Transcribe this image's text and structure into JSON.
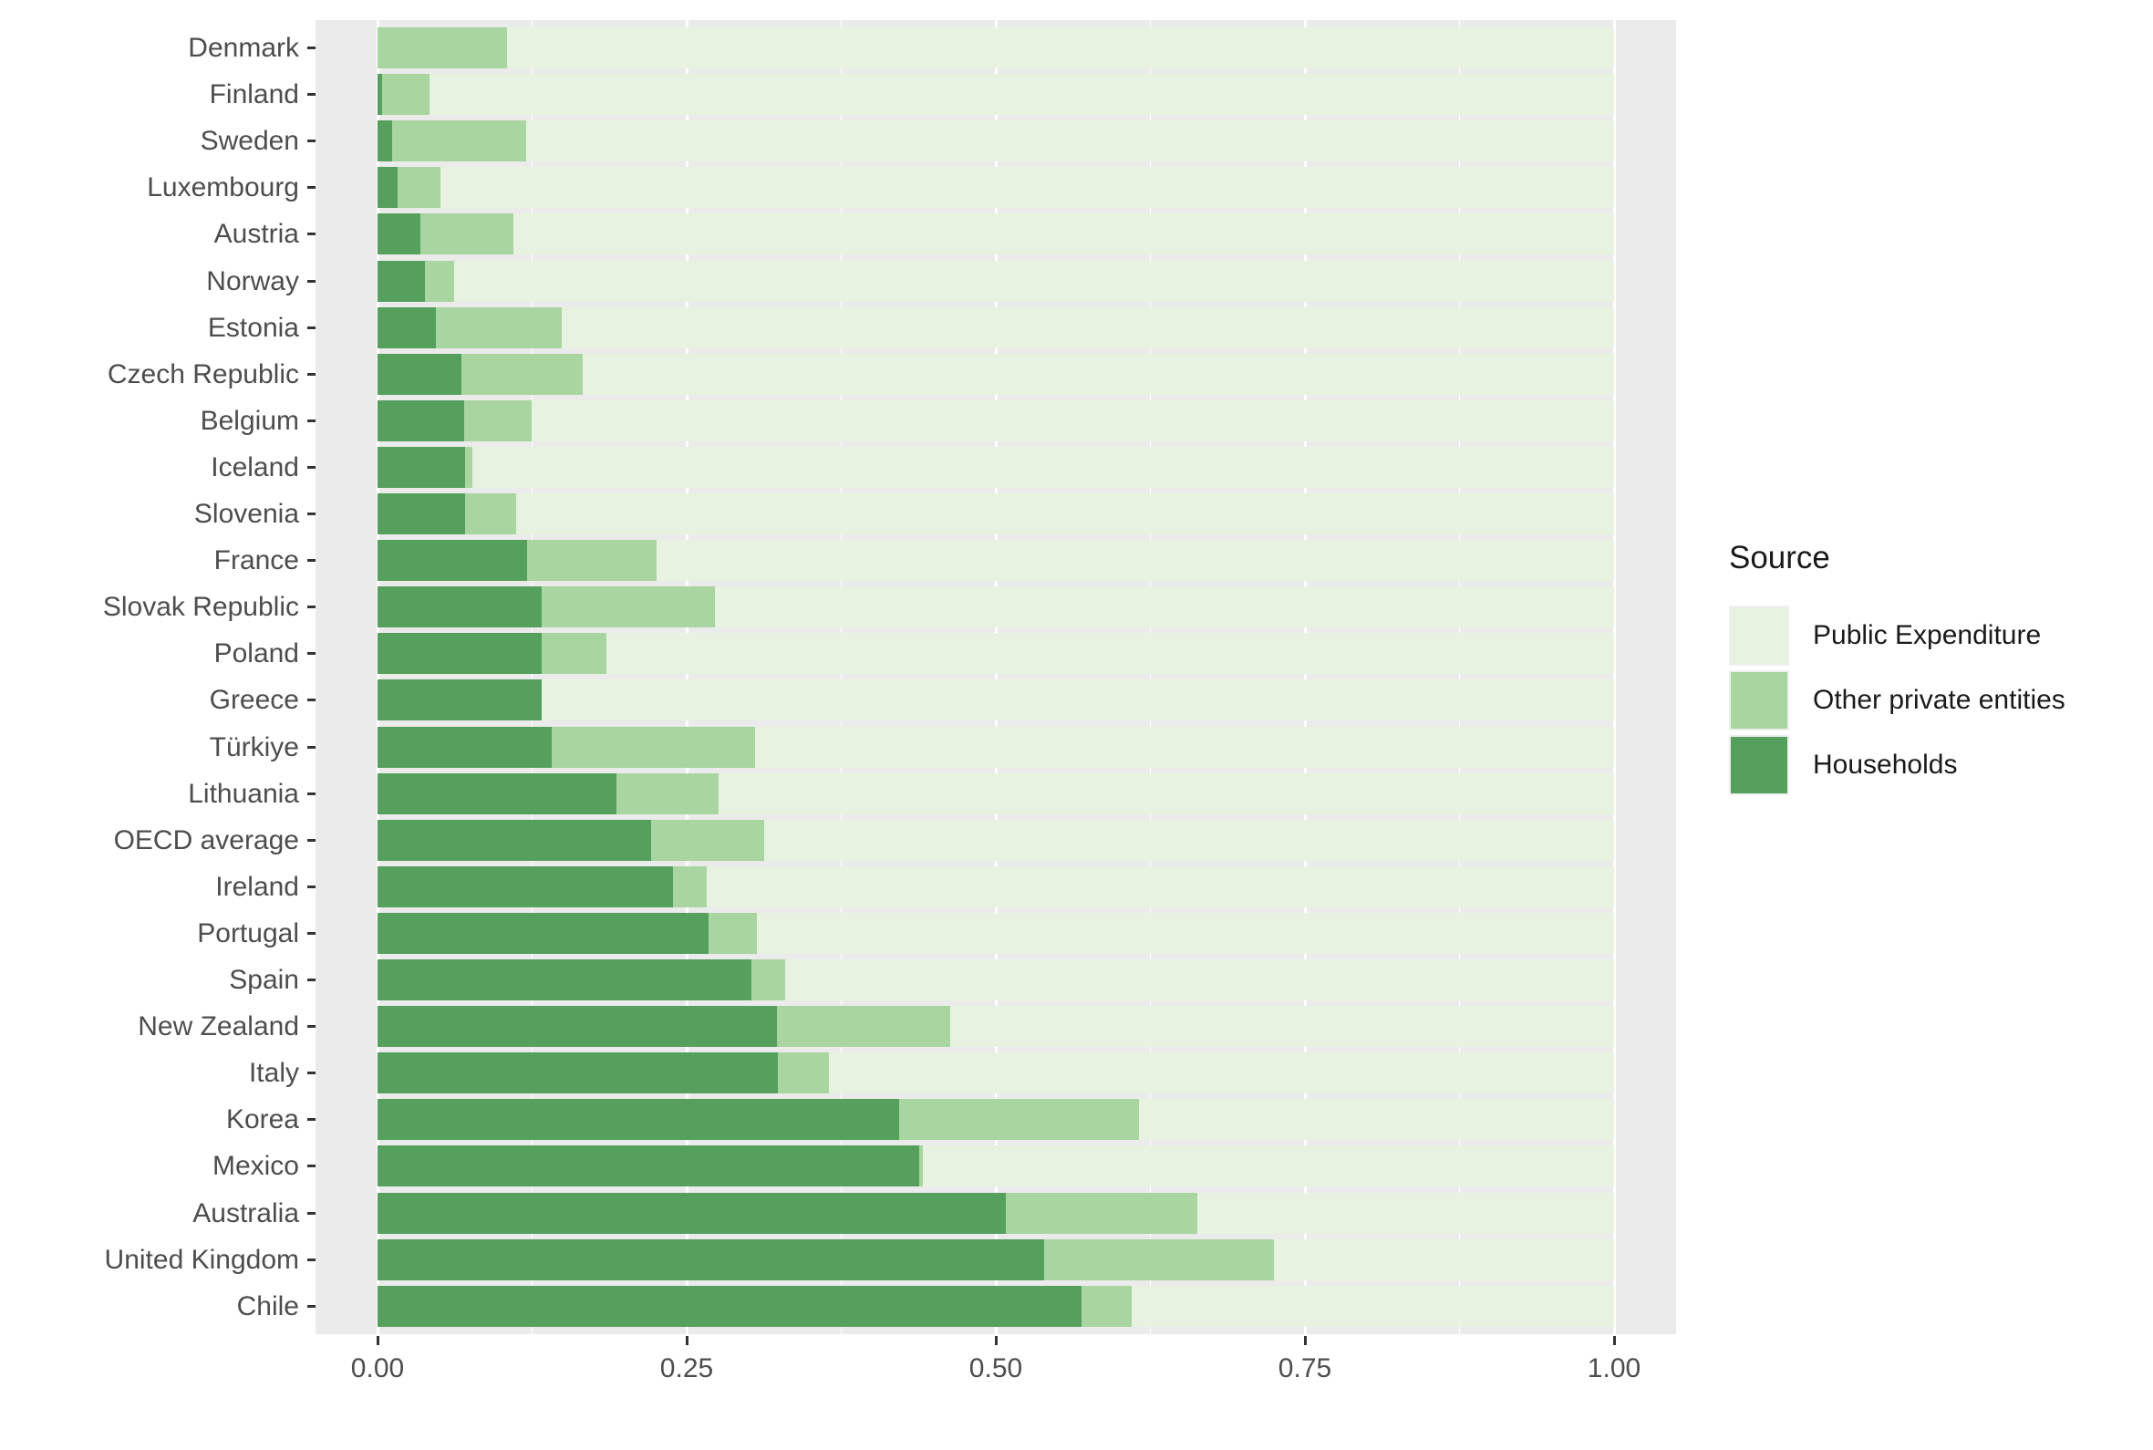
{
  "chart_data": {
    "type": "bar",
    "orientation": "horizontal",
    "stacked": true,
    "legend": {
      "title": "Source",
      "position": "right",
      "entries": [
        "Public Expenditure",
        "Other private entities",
        "Households"
      ]
    },
    "x_axis": {
      "range": [
        0,
        1
      ],
      "tick_values": [
        0,
        0.25,
        0.5,
        0.75,
        1
      ],
      "tick_labels": [
        "0.00",
        "0.25",
        "0.50",
        "0.75",
        "1.00"
      ],
      "minor_tick_values": [
        0.125,
        0.375,
        0.625,
        0.875
      ],
      "grid": true
    },
    "categories": [
      "Denmark",
      "Finland",
      "Sweden",
      "Luxembourg",
      "Austria",
      "Norway",
      "Estonia",
      "Czech Republic",
      "Belgium",
      "Iceland",
      "Slovenia",
      "France",
      "Slovak Republic",
      "Poland",
      "Greece",
      "Türkiye",
      "Lithuania",
      "OECD average",
      "Ireland",
      "Portugal",
      "Spain",
      "New Zealand",
      "Italy",
      "Korea",
      "Mexico",
      "Australia",
      "United Kingdom",
      "Chile"
    ],
    "series": [
      {
        "name": "Households",
        "color": "#56a05e",
        "values": [
          0.0,
          0.004,
          0.012,
          0.016,
          0.035,
          0.038,
          0.047,
          0.068,
          0.07,
          0.071,
          0.071,
          0.121,
          0.133,
          0.133,
          0.133,
          0.141,
          0.193,
          0.221,
          0.239,
          0.268,
          0.302,
          0.323,
          0.324,
          0.422,
          0.438,
          0.508,
          0.539,
          0.569
        ]
      },
      {
        "name": "Other private entities",
        "color": "#a9d5a0",
        "values": [
          0.105,
          0.038,
          0.108,
          0.035,
          0.075,
          0.024,
          0.102,
          0.098,
          0.055,
          0.006,
          0.041,
          0.105,
          0.14,
          0.052,
          0.0,
          0.164,
          0.083,
          0.092,
          0.027,
          0.039,
          0.028,
          0.14,
          0.041,
          0.194,
          0.003,
          0.155,
          0.186,
          0.041
        ]
      },
      {
        "name": "Public Expenditure",
        "color": "#e7f2e1",
        "values": [
          0.895,
          0.958,
          0.88,
          0.949,
          0.89,
          0.938,
          0.851,
          0.834,
          0.875,
          0.923,
          0.888,
          0.774,
          0.727,
          0.815,
          0.867,
          0.695,
          0.724,
          0.687,
          0.734,
          0.693,
          0.67,
          0.537,
          0.635,
          0.384,
          0.559,
          0.337,
          0.275,
          0.39
        ]
      }
    ],
    "colors": {
      "panel_background": "#ebebeb",
      "gridline": "#ffffff",
      "axis_text": "#4d4d4d",
      "tick_mark": "#333333",
      "legend_text": "#1a1a1a"
    }
  }
}
